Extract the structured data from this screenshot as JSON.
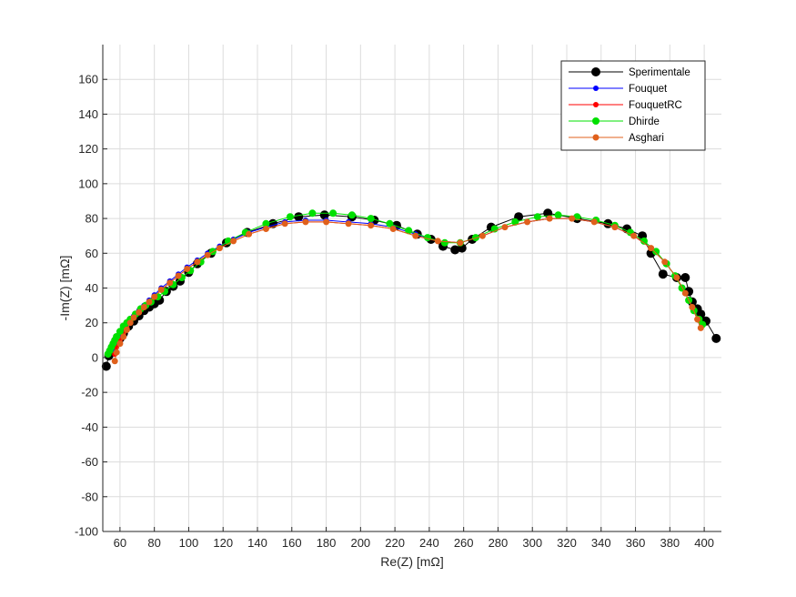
{
  "chart_data": {
    "type": "line",
    "title": "",
    "xlabel": "Re(Z) [mΩ]",
    "ylabel": "-Im(Z) [mΩ]",
    "xlim": [
      50,
      410
    ],
    "ylim": [
      -100,
      180
    ],
    "xticks": [
      60,
      80,
      100,
      120,
      140,
      160,
      180,
      200,
      220,
      240,
      260,
      280,
      300,
      320,
      340,
      360,
      380,
      400
    ],
    "yticks": [
      -100,
      -80,
      -60,
      -40,
      -20,
      0,
      20,
      40,
      60,
      80,
      100,
      120,
      140,
      160
    ],
    "grid": true,
    "legend_position": "top-right",
    "series": [
      {
        "name": "Sperimentale",
        "color": "#000000",
        "marker_size": 5,
        "x": [
          52,
          53.5,
          55,
          57,
          60,
          62,
          65,
          68,
          71,
          74,
          77,
          80,
          83,
          87,
          91,
          95,
          100,
          105,
          113,
          122,
          134,
          149,
          164,
          179,
          195,
          208,
          221,
          233,
          241,
          248,
          255,
          259,
          265,
          276,
          292,
          309,
          326,
          344,
          355,
          364,
          369,
          376,
          384,
          389,
          391,
          393,
          396,
          398,
          401,
          407
        ],
        "y": [
          -5,
          1,
          3,
          7,
          11,
          14,
          18,
          21,
          24,
          27,
          29,
          31,
          33,
          38,
          41,
          44,
          49,
          54,
          60,
          66,
          72,
          77,
          81,
          82,
          81,
          79,
          76,
          71,
          68,
          64,
          62,
          63,
          68,
          75,
          81,
          83,
          80,
          77,
          74,
          70,
          60,
          48,
          46,
          46,
          38,
          32,
          28,
          25,
          21,
          11
        ]
      },
      {
        "name": "Fouquet",
        "color": "#0000ff",
        "marker_size": 3,
        "x": [
          57,
          58,
          60,
          62,
          64,
          66,
          68,
          71,
          74,
          77,
          80,
          84,
          89,
          94,
          99,
          105,
          111,
          118,
          126,
          135,
          145,
          156,
          168,
          180,
          193,
          206,
          219,
          232,
          245,
          258,
          271,
          284,
          297,
          310,
          323,
          336,
          348,
          359,
          369,
          377,
          384,
          389,
          393,
          396,
          398
        ],
        "y": [
          4,
          8,
          12,
          15,
          18,
          21,
          24,
          27,
          30,
          33,
          36,
          40,
          44,
          48,
          52,
          56,
          60,
          64,
          68,
          72,
          75,
          78,
          79,
          79,
          78,
          77,
          75,
          71,
          67,
          66,
          70,
          75,
          78,
          80,
          80,
          78,
          75,
          70,
          63,
          55,
          46,
          37,
          29,
          22,
          17
        ]
      },
      {
        "name": "FouquetRC",
        "color": "#ff0000",
        "marker_size": 3,
        "x": [
          57,
          58,
          60,
          62,
          64,
          66,
          68,
          71,
          74,
          77,
          80,
          84,
          89,
          94,
          99,
          105,
          111,
          118,
          126,
          135,
          145,
          156,
          168,
          180,
          193,
          206,
          219,
          232,
          245,
          258,
          271,
          284,
          297,
          310,
          323,
          336,
          348,
          359,
          369,
          377,
          384,
          389,
          393,
          396,
          398
        ],
        "y": [
          2,
          6,
          10,
          14,
          17,
          20,
          23,
          26,
          29,
          32,
          35,
          39,
          43,
          47,
          51,
          55,
          59,
          63,
          67,
          71,
          74,
          77,
          78,
          78,
          77,
          76,
          74,
          70,
          67,
          66,
          70,
          75,
          78,
          80,
          80,
          78,
          75,
          70,
          63,
          55,
          46,
          37,
          29,
          22,
          17
        ]
      },
      {
        "name": "Dhirde",
        "color": "#00e000",
        "marker_size": 4,
        "x": [
          53,
          54,
          55,
          56,
          57,
          58,
          60,
          62,
          64,
          66,
          69,
          72,
          75,
          78,
          82,
          86,
          91,
          96,
          101,
          107,
          114,
          123,
          133,
          145,
          159,
          172,
          184,
          195,
          206,
          217,
          228,
          239,
          249,
          258,
          267,
          278,
          290,
          303,
          315,
          326,
          337,
          348,
          357,
          365,
          372,
          378,
          383,
          387,
          391,
          394,
          397,
          399
        ],
        "y": [
          2,
          4,
          6,
          8,
          10,
          12,
          15,
          18,
          20,
          22,
          25,
          28,
          30,
          32,
          35,
          38,
          42,
          46,
          50,
          55,
          61,
          67,
          72,
          77,
          81,
          83,
          83,
          82,
          80,
          77,
          73,
          69,
          66,
          66,
          69,
          74,
          78,
          81,
          82,
          81,
          79,
          76,
          72,
          67,
          61,
          54,
          47,
          40,
          33,
          27,
          22,
          19
        ]
      },
      {
        "name": "Asghari",
        "color": "#e0601c",
        "marker_size": 3.5,
        "x": [
          57,
          58,
          60,
          62,
          64,
          66,
          68,
          71,
          74,
          77,
          80,
          84,
          89,
          94,
          99,
          105,
          111,
          118,
          126,
          135,
          145,
          156,
          168,
          180,
          193,
          206,
          219,
          232,
          245,
          258,
          271,
          284,
          297,
          310,
          323,
          336,
          348,
          359,
          369,
          377,
          384,
          389,
          393,
          396,
          398
        ],
        "y": [
          -2,
          3,
          8,
          12,
          16,
          20,
          23,
          26,
          29,
          32,
          35,
          39,
          43,
          47,
          51,
          55,
          59,
          63,
          67,
          71,
          74,
          77,
          78,
          78,
          77,
          76,
          74,
          70,
          67,
          66,
          70,
          75,
          78,
          80,
          80,
          78,
          75,
          70,
          63,
          55,
          46,
          37,
          29,
          22,
          17
        ]
      }
    ]
  }
}
